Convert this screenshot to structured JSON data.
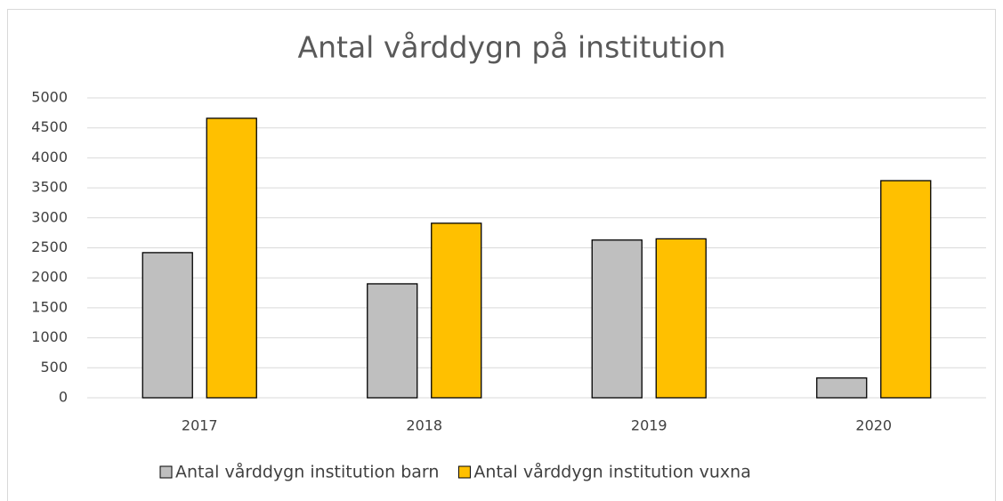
{
  "chart_data": {
    "type": "bar",
    "title": "Antal vårddygn på institution",
    "categories": [
      "2017",
      "2018",
      "2019",
      "2020"
    ],
    "series": [
      {
        "name": "Antal vårddygn institution barn",
        "color": "#bfbfbf",
        "values": [
          2420,
          1900,
          2630,
          330
        ]
      },
      {
        "name": "Antal vårddygn institution vuxna",
        "color": "#ffc000",
        "values": [
          4660,
          2910,
          2650,
          3620
        ]
      }
    ],
    "ylim": [
      0,
      5000
    ],
    "yticks": [
      0,
      500,
      1000,
      1500,
      2000,
      2500,
      3000,
      3500,
      4000,
      4500,
      5000
    ],
    "grid": true,
    "legend": "bottom"
  }
}
